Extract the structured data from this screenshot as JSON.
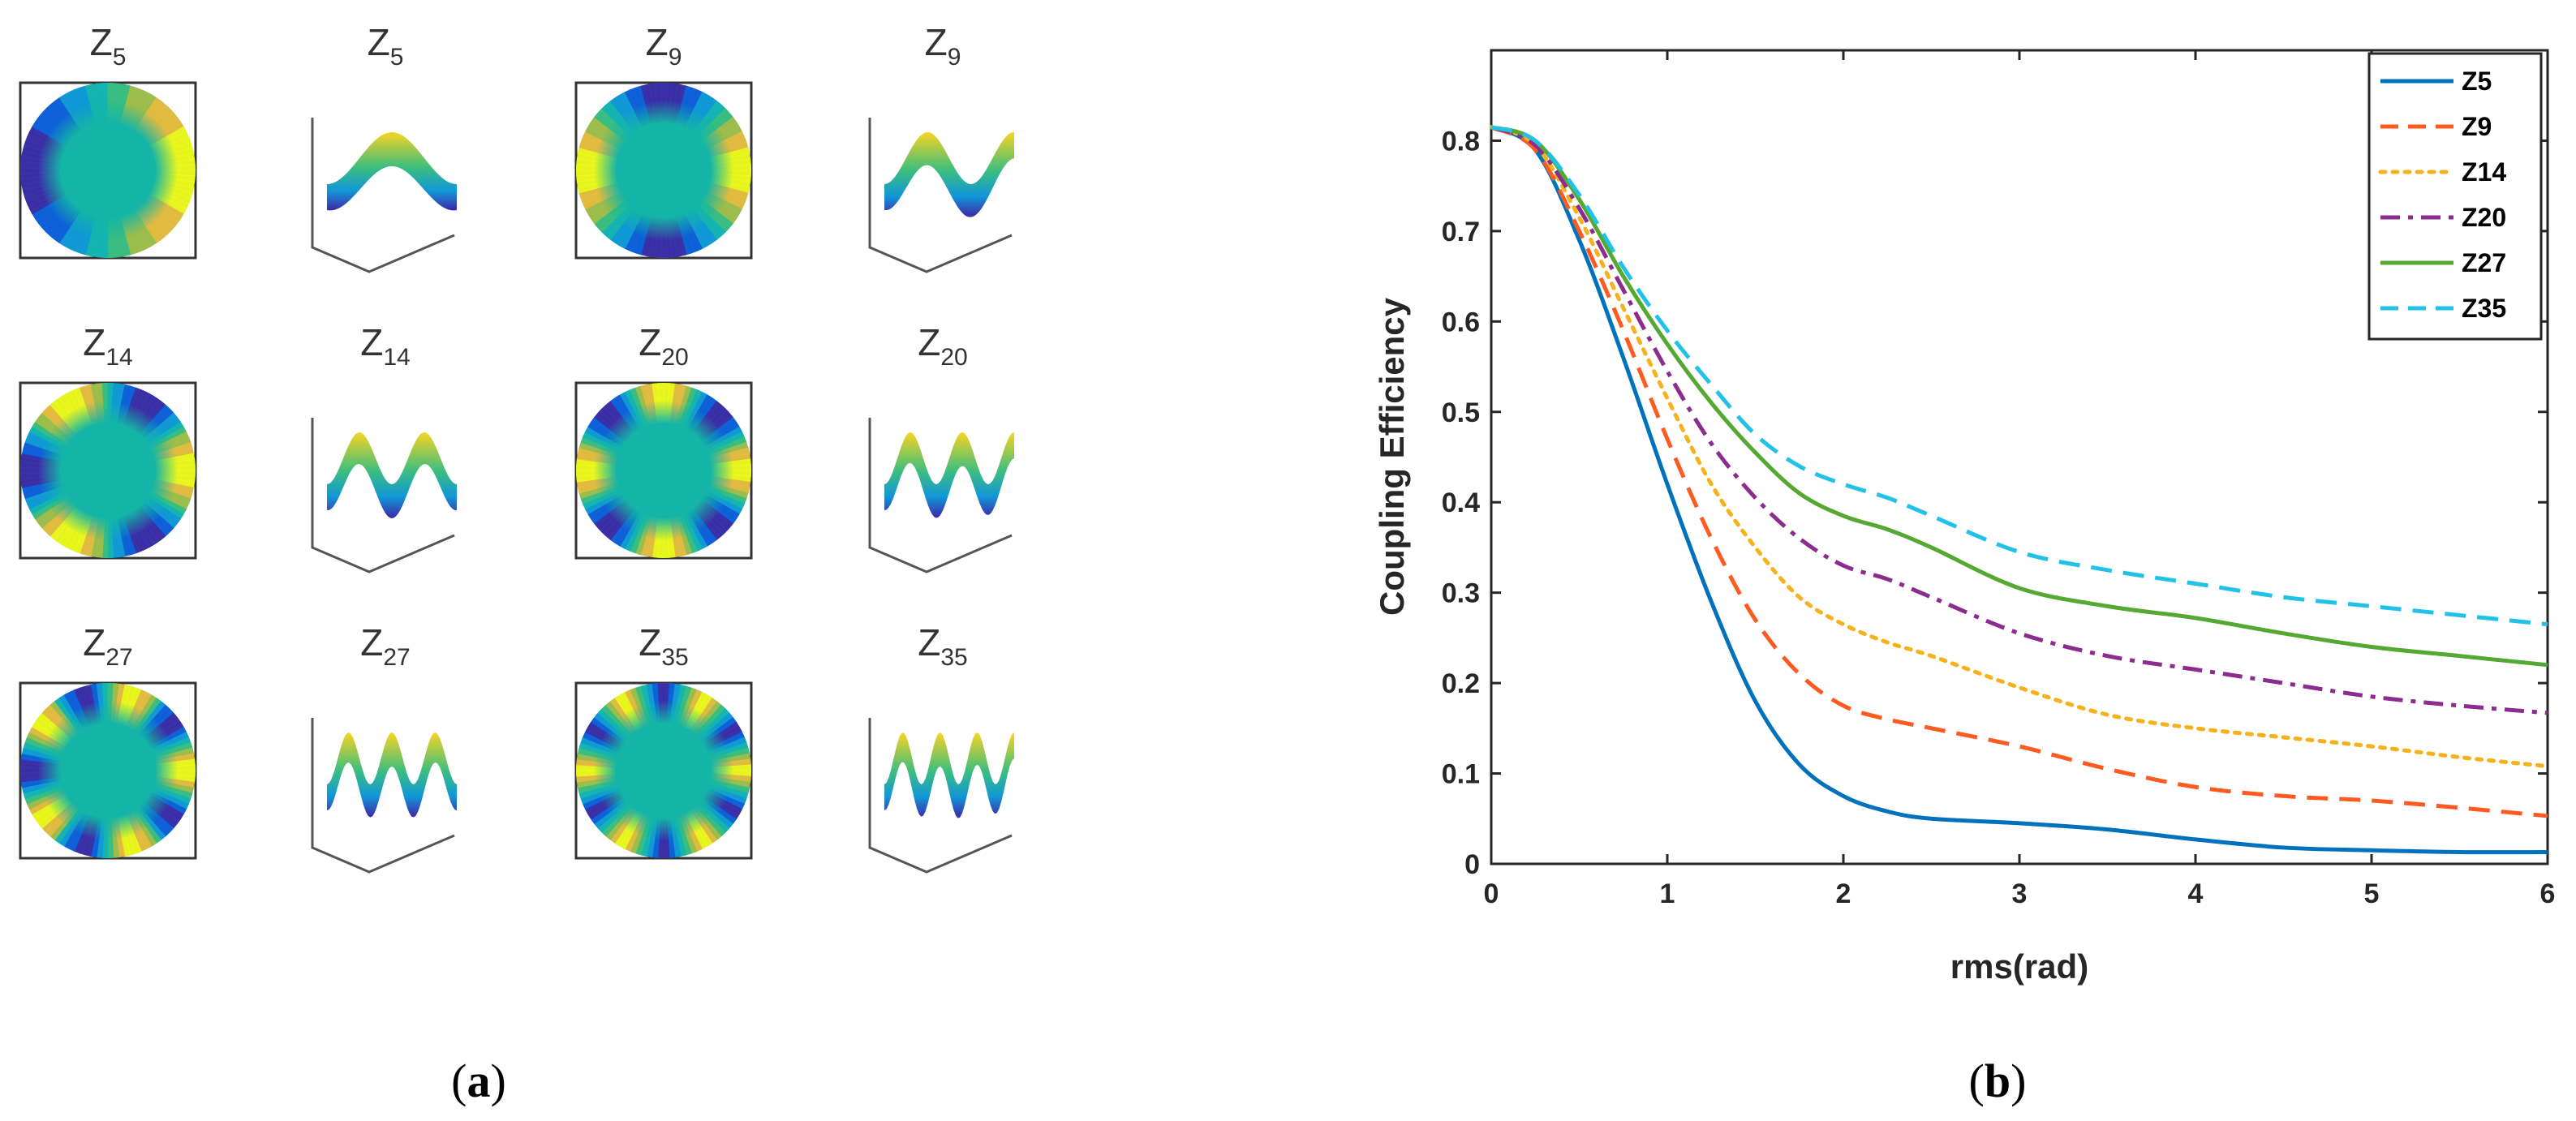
{
  "panel_a": {
    "label_open": "(",
    "label_letter": "a",
    "label_close": ")",
    "rows": [
      [
        {
          "base": "Z",
          "sub": "5",
          "kind": "map",
          "order": 2
        },
        {
          "base": "Z",
          "sub": "5",
          "kind": "surface",
          "order": 2
        },
        {
          "base": "Z",
          "sub": "9",
          "kind": "map",
          "order": 4
        },
        {
          "base": "Z",
          "sub": "9",
          "kind": "surface",
          "order": 4
        }
      ],
      [
        {
          "base": "Z",
          "sub": "14",
          "kind": "map",
          "order": 6
        },
        {
          "base": "Z",
          "sub": "14",
          "kind": "surface",
          "order": 6
        },
        {
          "base": "Z",
          "sub": "20",
          "kind": "map",
          "order": 8
        },
        {
          "base": "Z",
          "sub": "20",
          "kind": "surface",
          "order": 8
        }
      ],
      [
        {
          "base": "Z",
          "sub": "27",
          "kind": "map",
          "order": 10
        },
        {
          "base": "Z",
          "sub": "27",
          "kind": "surface",
          "order": 10
        },
        {
          "base": "Z",
          "sub": "35",
          "kind": "map",
          "order": 12
        },
        {
          "base": "Z",
          "sub": "35",
          "kind": "surface",
          "order": 12
        }
      ]
    ],
    "colormap": [
      "#3e26a8",
      "#0f5bdc",
      "#1197d8",
      "#14b5b2",
      "#3dbe7e",
      "#a8be46",
      "#f1bc3a",
      "#f9fb14"
    ]
  },
  "panel_b": {
    "label_open": "(",
    "label_letter": "b",
    "label_close": ")"
  },
  "chart_data": {
    "type": "line",
    "title": "",
    "xlabel": "rms(rad)",
    "ylabel": "Coupling Efficiency",
    "xlim": [
      0,
      6
    ],
    "ylim": [
      0,
      0.9
    ],
    "xticks": [
      "0",
      "1",
      "2",
      "3",
      "4",
      "5",
      "6"
    ],
    "yticks": [
      "0",
      "0.1",
      "0.2",
      "0.3",
      "0.4",
      "0.5",
      "0.6",
      "0.7",
      "0.8"
    ],
    "grid": false,
    "legend_position": "top-right",
    "series": [
      {
        "name": "Z5",
        "color": "#0072bd",
        "dash": "solid",
        "x": [
          0,
          0.25,
          0.5,
          0.75,
          1,
          1.25,
          1.5,
          1.75,
          2,
          2.25,
          2.5,
          3,
          3.5,
          4,
          4.5,
          5,
          5.5,
          6
        ],
        "y": [
          0.815,
          0.79,
          0.69,
          0.56,
          0.42,
          0.29,
          0.18,
          0.11,
          0.075,
          0.058,
          0.05,
          0.045,
          0.038,
          0.027,
          0.018,
          0.015,
          0.013,
          0.013
        ]
      },
      {
        "name": "Z9",
        "color": "#ff5a1f",
        "dash": "dashed",
        "x": [
          0,
          0.25,
          0.5,
          0.75,
          1,
          1.25,
          1.5,
          1.75,
          2,
          2.25,
          2.5,
          3,
          3.5,
          4,
          4.5,
          5,
          5.5,
          6
        ],
        "y": [
          0.815,
          0.79,
          0.7,
          0.59,
          0.47,
          0.36,
          0.27,
          0.21,
          0.175,
          0.16,
          0.15,
          0.13,
          0.105,
          0.085,
          0.075,
          0.07,
          0.062,
          0.053
        ]
      },
      {
        "name": "Z14",
        "color": "#f5b21c",
        "dash": "dotted",
        "x": [
          0,
          0.25,
          0.5,
          0.75,
          1,
          1.25,
          1.5,
          1.75,
          2,
          2.25,
          2.5,
          3,
          3.5,
          4,
          4.5,
          5,
          5.5,
          6
        ],
        "y": [
          0.815,
          0.795,
          0.715,
          0.615,
          0.515,
          0.42,
          0.35,
          0.295,
          0.265,
          0.245,
          0.23,
          0.195,
          0.165,
          0.15,
          0.14,
          0.13,
          0.118,
          0.108
        ]
      },
      {
        "name": "Z20",
        "color": "#8b2c8e",
        "dash": "dashdot",
        "x": [
          0,
          0.25,
          0.5,
          0.75,
          1,
          1.25,
          1.5,
          1.75,
          2,
          2.25,
          2.5,
          3,
          3.5,
          4,
          4.5,
          5,
          5.5,
          6
        ],
        "y": [
          0.815,
          0.795,
          0.725,
          0.635,
          0.545,
          0.465,
          0.405,
          0.36,
          0.33,
          0.315,
          0.295,
          0.255,
          0.23,
          0.215,
          0.2,
          0.185,
          0.175,
          0.167
        ]
      },
      {
        "name": "Z27",
        "color": "#55a832",
        "dash": "solid",
        "x": [
          0,
          0.25,
          0.5,
          0.75,
          1,
          1.25,
          1.5,
          1.75,
          2,
          2.25,
          2.5,
          3,
          3.5,
          4,
          4.5,
          5,
          5.5,
          6
        ],
        "y": [
          0.815,
          0.8,
          0.735,
          0.65,
          0.575,
          0.51,
          0.455,
          0.41,
          0.385,
          0.37,
          0.35,
          0.305,
          0.285,
          0.272,
          0.255,
          0.24,
          0.23,
          0.22
        ]
      },
      {
        "name": "Z35",
        "color": "#22c1e8",
        "dash": "dashed",
        "x": [
          0,
          0.25,
          0.5,
          0.75,
          1,
          1.25,
          1.5,
          1.75,
          2,
          2.25,
          2.5,
          3,
          3.5,
          4,
          4.5,
          5,
          5.5,
          6
        ],
        "y": [
          0.815,
          0.8,
          0.74,
          0.66,
          0.59,
          0.53,
          0.475,
          0.44,
          0.42,
          0.405,
          0.385,
          0.345,
          0.325,
          0.31,
          0.295,
          0.285,
          0.275,
          0.265
        ]
      }
    ]
  }
}
